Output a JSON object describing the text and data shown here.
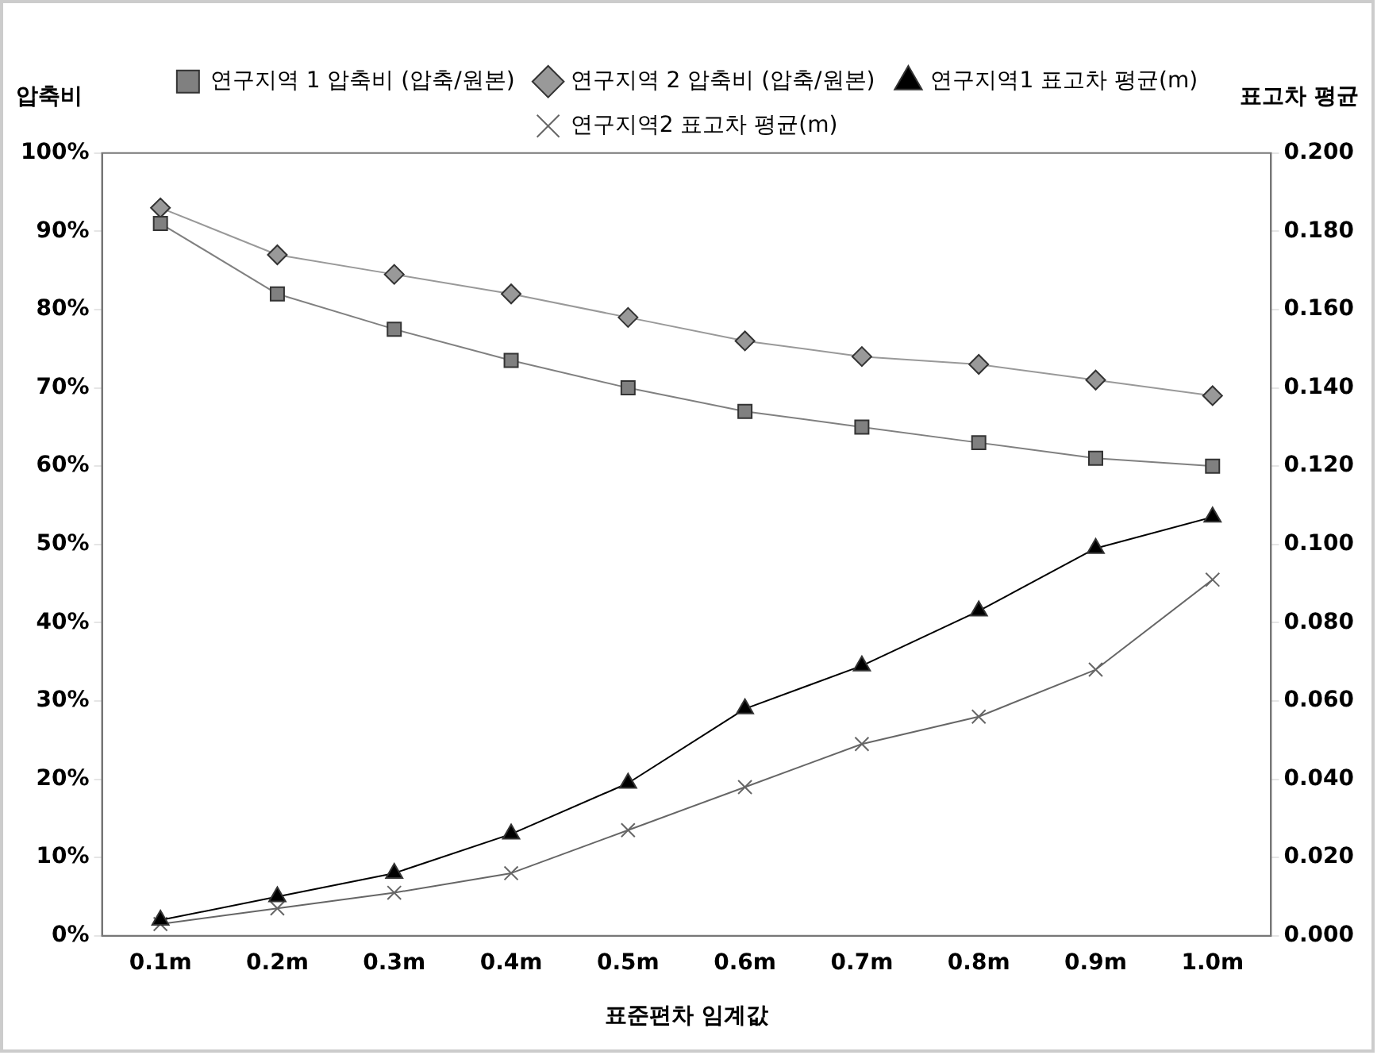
{
  "chart_data": {
    "type": "line",
    "xlabel": "표준편차 임계값",
    "ylabel": "압축비",
    "y2label": "표고차 평균",
    "legend": "top",
    "grid": false,
    "categories": [
      "0.1m",
      "0.2m",
      "0.3m",
      "0.4m",
      "0.5m",
      "0.6m",
      "0.7m",
      "0.8m",
      "0.9m",
      "1.0m"
    ],
    "ylim": [
      0,
      100
    ],
    "yticks": [
      {
        "value": 0,
        "label": "0%"
      },
      {
        "value": 10,
        "label": "10%"
      },
      {
        "value": 20,
        "label": "20%"
      },
      {
        "value": 30,
        "label": "30%"
      },
      {
        "value": 40,
        "label": "40%"
      },
      {
        "value": 50,
        "label": "50%"
      },
      {
        "value": 60,
        "label": "60%"
      },
      {
        "value": 70,
        "label": "70%"
      },
      {
        "value": 80,
        "label": "80%"
      },
      {
        "value": 90,
        "label": "90%"
      },
      {
        "value": 100,
        "label": "100%"
      }
    ],
    "y2lim": [
      0,
      0.2
    ],
    "y2ticks": [
      {
        "value": 0,
        "label": "0.000"
      },
      {
        "value": 0.02,
        "label": "0.020"
      },
      {
        "value": 0.04,
        "label": "0.040"
      },
      {
        "value": 0.06,
        "label": "0.060"
      },
      {
        "value": 0.08,
        "label": "0.080"
      },
      {
        "value": 0.1,
        "label": "0.100"
      },
      {
        "value": 0.12,
        "label": "0.120"
      },
      {
        "value": 0.14,
        "label": "0.140"
      },
      {
        "value": 0.16,
        "label": "0.160"
      },
      {
        "value": 0.18,
        "label": "0.180"
      },
      {
        "value": 0.2,
        "label": "0.200"
      }
    ],
    "series": [
      {
        "name": "연구지역 1 압축비 (압축/원본)",
        "color": "#808080",
        "marker": "square",
        "values": [
          91,
          82,
          77.5,
          73.5,
          70,
          67,
          65,
          63,
          61,
          60
        ]
      },
      {
        "name": "연구지역 2 압축비 (압축/원본)",
        "color": "#999999",
        "marker": "diamond",
        "values": [
          93,
          87,
          84.5,
          82,
          79,
          76,
          74,
          73,
          71,
          69
        ]
      },
      {
        "name": "연구지역1 표고차 평균(m)",
        "color": "#000000",
        "marker": "triangle",
        "axis": "y2",
        "values": [
          0.004,
          0.01,
          0.016,
          0.026,
          0.039,
          0.058,
          0.069,
          0.083,
          0.099,
          0.107
        ]
      },
      {
        "name": "연구지역2 표고차 평균(m)",
        "color": "#666666",
        "marker": "cross",
        "axis": "y2",
        "values": [
          0.003,
          0.007,
          0.011,
          0.016,
          0.027,
          0.038,
          0.049,
          0.056,
          0.068,
          0.091
        ]
      }
    ]
  }
}
